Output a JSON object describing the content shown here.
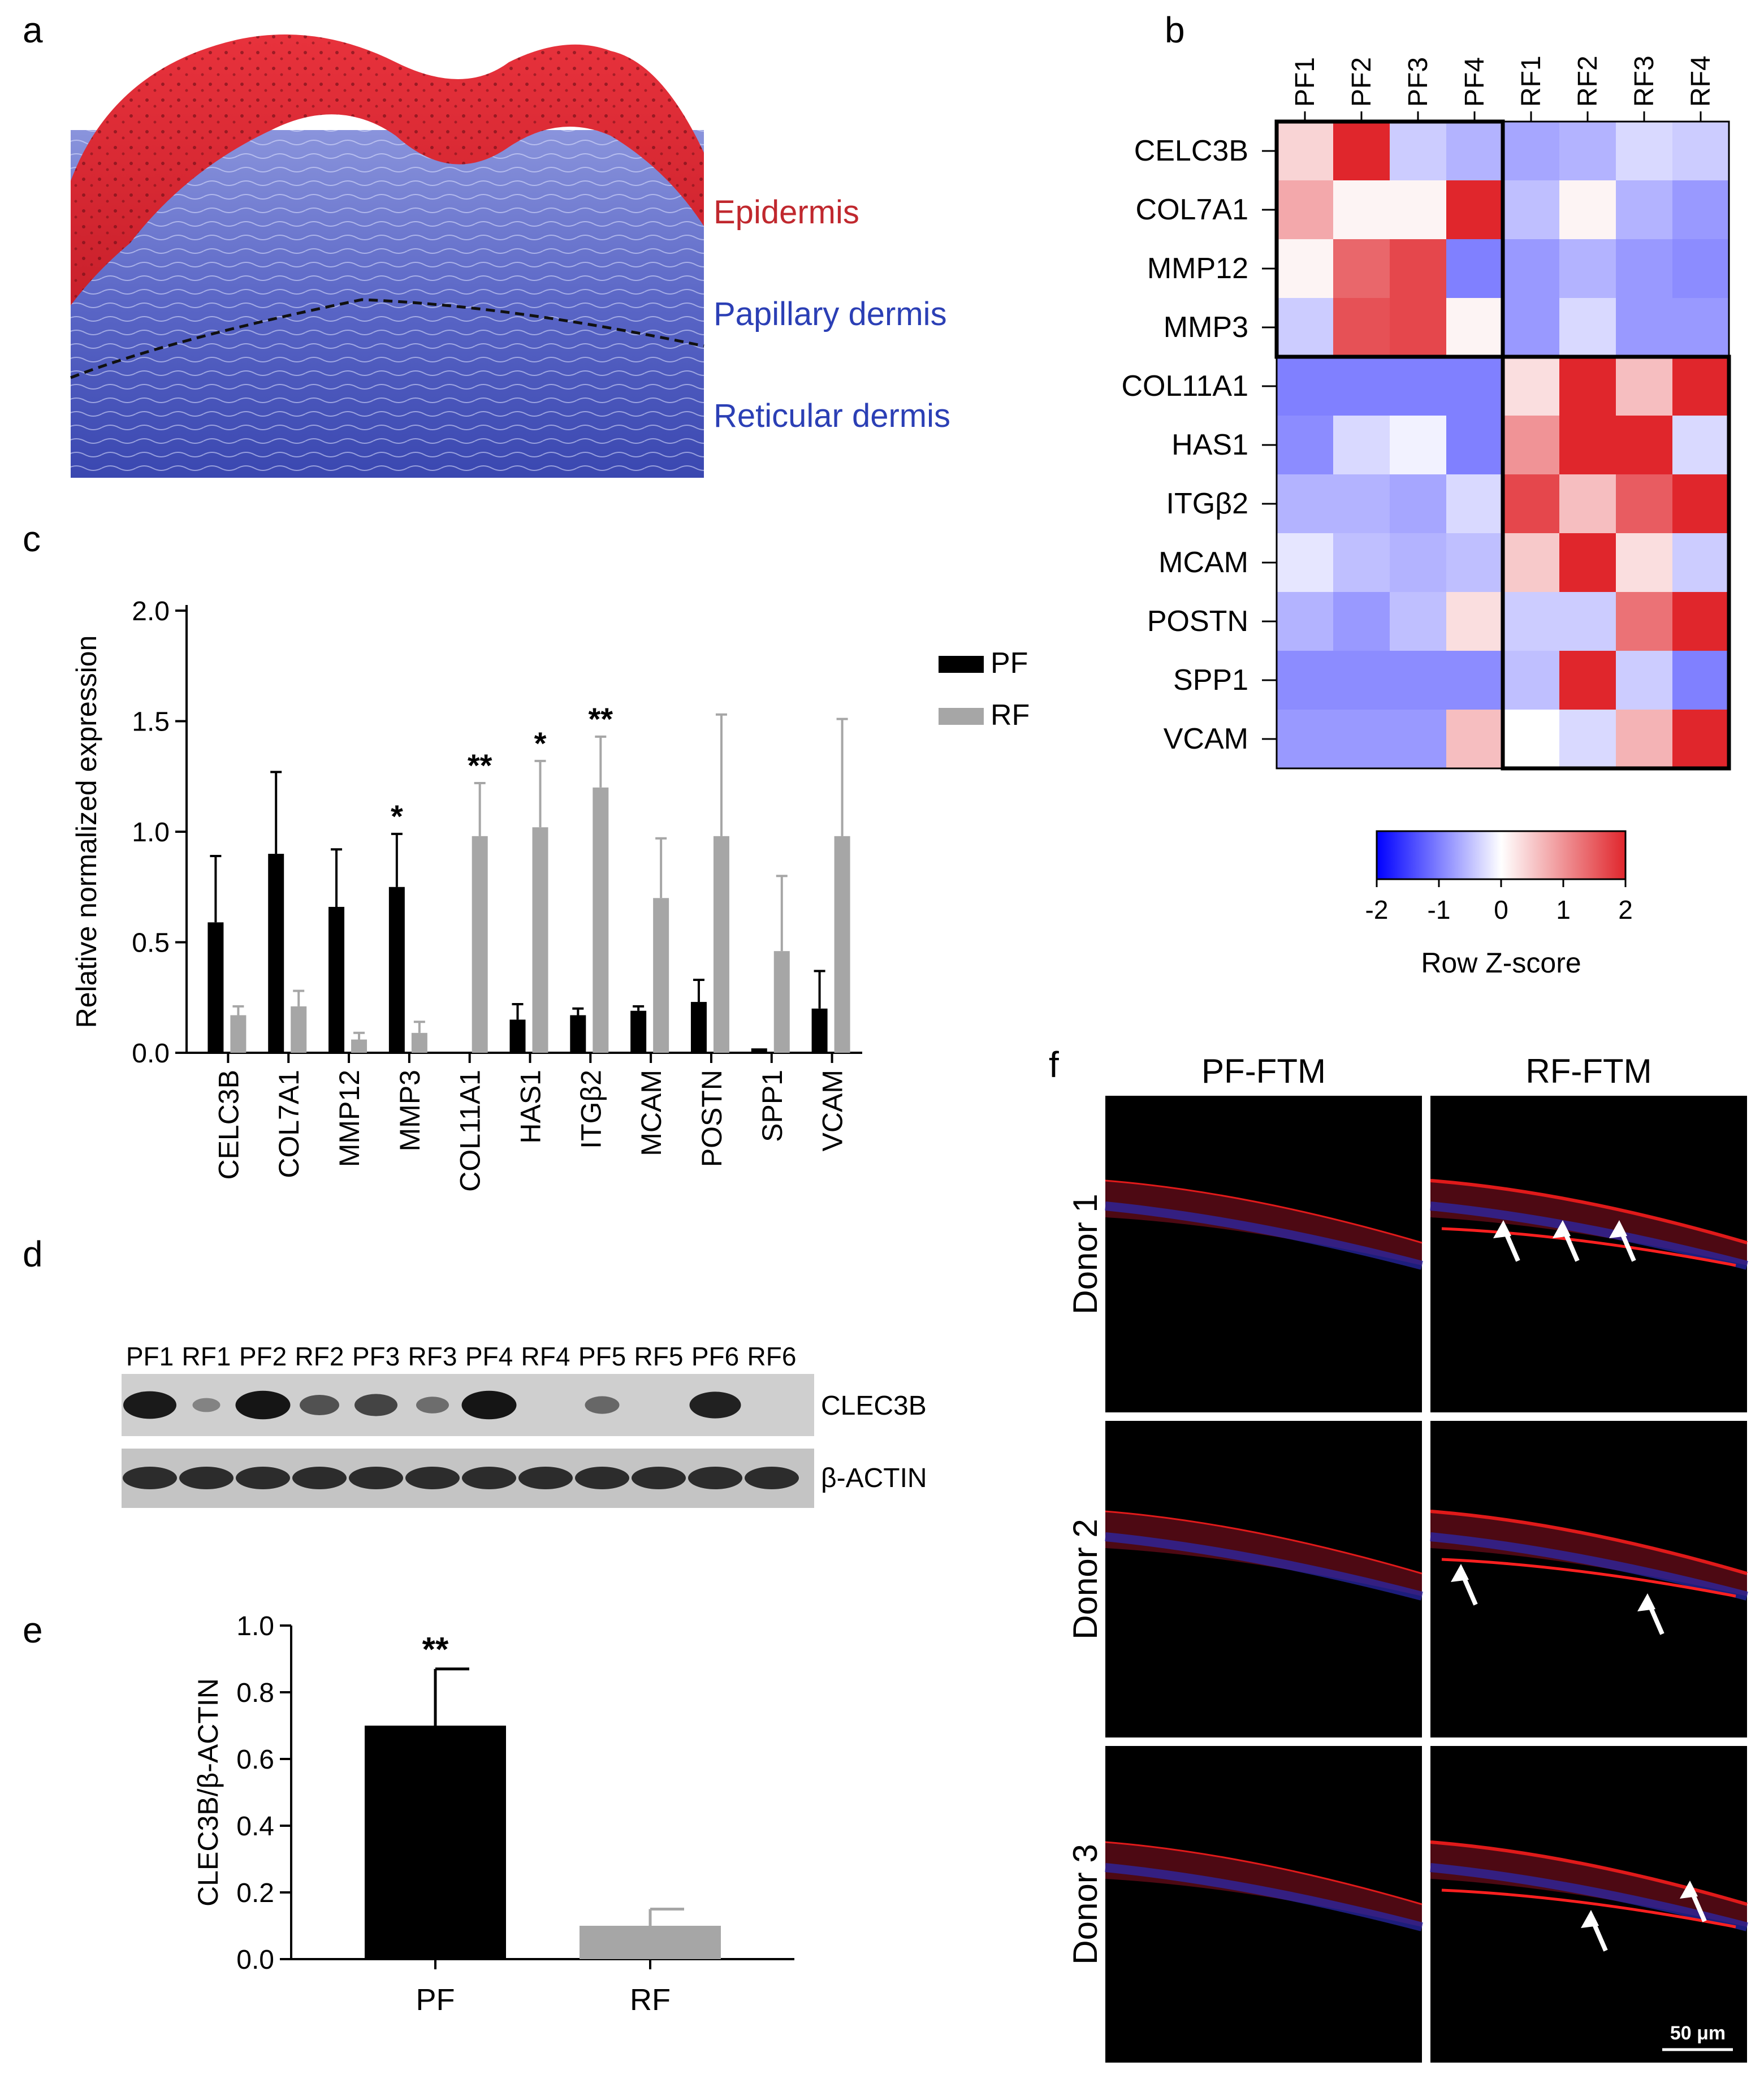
{
  "panel_labels": {
    "a": "a",
    "b": "b",
    "c": "c",
    "d": "d",
    "e": "e",
    "f": "f"
  },
  "histology": {
    "labels": [
      {
        "text": "Epidermis",
        "color": "#c0282e"
      },
      {
        "text": "Papillary dermis",
        "color": "#2b3fb5"
      },
      {
        "text": "Reticular dermis",
        "color": "#2b3fb5"
      }
    ]
  },
  "chart_data": [
    {
      "id": "heatmap",
      "type": "heatmap",
      "columns": [
        "PF1",
        "PF2",
        "PF3",
        "PF4",
        "RF1",
        "RF2",
        "RF3",
        "RF4"
      ],
      "rows": [
        "CELC3B",
        "COL7A1",
        "MMP12",
        "MMP3",
        "COL11A1",
        "HAS1",
        "ITGβ2",
        "MCAM",
        "POSTN",
        "SPP1",
        "VCAM"
      ],
      "values": [
        [
          0.4,
          2.0,
          -0.4,
          -0.6,
          -0.7,
          -0.6,
          -0.3,
          -0.4
        ],
        [
          0.8,
          0.1,
          0.1,
          2.0,
          -0.5,
          0.1,
          -0.6,
          -0.8
        ],
        [
          0.1,
          1.4,
          1.7,
          -1.0,
          -0.8,
          -0.6,
          -0.8,
          -0.9
        ],
        [
          -0.4,
          1.6,
          1.7,
          0.1,
          -0.8,
          -0.3,
          -0.8,
          -0.8
        ],
        [
          -1.0,
          -1.0,
          -1.0,
          -1.0,
          0.3,
          2.0,
          0.6,
          2.0
        ],
        [
          -0.9,
          -0.3,
          -0.1,
          -1.0,
          1.0,
          2.0,
          2.0,
          -0.3
        ],
        [
          -0.6,
          -0.6,
          -0.7,
          -0.3,
          1.7,
          0.6,
          1.5,
          2.0
        ],
        [
          -0.2,
          -0.5,
          -0.6,
          -0.5,
          0.5,
          2.0,
          0.3,
          -0.4
        ],
        [
          -0.6,
          -0.8,
          -0.5,
          0.3,
          -0.4,
          -0.4,
          1.3,
          2.0
        ],
        [
          -0.9,
          -0.9,
          -0.9,
          -0.9,
          -0.5,
          2.0,
          -0.4,
          -1.0
        ],
        [
          -0.8,
          -0.8,
          -0.8,
          0.6,
          0.0,
          -0.3,
          0.7,
          2.0
        ]
      ],
      "colorbar": {
        "ticks": [
          "-2",
          "-1",
          "0",
          "1",
          "2"
        ],
        "label": "Row Z-score",
        "min": -2,
        "max": 2,
        "low": "#0000ff",
        "mid": "#ffffff",
        "high": "#e0262c"
      }
    },
    {
      "id": "qpcr",
      "type": "bar",
      "ylabel": "Relative normalized expression",
      "ylim": [
        0,
        2.0
      ],
      "yticks": [
        "0.0",
        "0.5",
        "1.0",
        "1.5",
        "2.0"
      ],
      "categories": [
        "CELC3B",
        "COL7A1",
        "MMP12",
        "MMP3",
        "COL11A1",
        "HAS1",
        "ITGβ2",
        "MCAM",
        "POSTN",
        "SPP1",
        "VCAM"
      ],
      "series": [
        {
          "name": "PF",
          "color": "#000000",
          "values": [
            0.59,
            0.9,
            0.66,
            0.75,
            0.0,
            0.15,
            0.17,
            0.19,
            0.23,
            0.02,
            0.2
          ],
          "errors": [
            0.3,
            0.37,
            0.26,
            0.24,
            0.0,
            0.07,
            0.03,
            0.02,
            0.1,
            0.0,
            0.17
          ]
        },
        {
          "name": "RF",
          "color": "#a6a6a6",
          "values": [
            0.17,
            0.21,
            0.06,
            0.09,
            0.98,
            1.02,
            1.2,
            0.7,
            0.98,
            0.46,
            0.98
          ],
          "errors": [
            0.04,
            0.07,
            0.03,
            0.05,
            0.24,
            0.3,
            0.23,
            0.27,
            0.55,
            0.34,
            0.53
          ]
        }
      ],
      "annotations": [
        {
          "category": "MMP3",
          "series": "PF",
          "text": "*"
        },
        {
          "category": "COL11A1",
          "series": "RF",
          "text": "**"
        },
        {
          "category": "HAS1",
          "series": "RF",
          "text": "*"
        },
        {
          "category": "ITGβ2",
          "series": "RF",
          "text": "**"
        }
      ],
      "legend": {
        "position": "top-right",
        "entries": [
          "PF",
          "RF"
        ]
      }
    },
    {
      "id": "western_quant",
      "type": "bar",
      "ylabel": "CLEC3B/β-ACTIN",
      "ylim": [
        0,
        1.0
      ],
      "yticks": [
        "0.0",
        "0.2",
        "0.4",
        "0.6",
        "0.8",
        "1.0"
      ],
      "categories": [
        "PF",
        "RF"
      ],
      "values": [
        0.7,
        0.1
      ],
      "errors": [
        0.17,
        0.05
      ],
      "colors": [
        "#000000",
        "#a6a6a6"
      ],
      "annotations": [
        {
          "category": "PF",
          "text": "**"
        }
      ]
    }
  ],
  "western": {
    "lanes": [
      "PF1",
      "RF1",
      "PF2",
      "RF2",
      "PF3",
      "RF3",
      "PF4",
      "RF4",
      "PF5",
      "RF5",
      "PF6",
      "RF6"
    ],
    "clec3b_label": "CLEC3B",
    "actin_label": "β-ACTIN",
    "clec3b_intensity": [
      0.9,
      0.15,
      0.95,
      0.5,
      0.6,
      0.3,
      0.95,
      0.0,
      0.35,
      0.0,
      0.85,
      0.0
    ]
  },
  "micrographs": {
    "columns": [
      "PF-FTM",
      "RF-FTM"
    ],
    "rows": [
      "Donor 1",
      "Donor 2",
      "Donor 3"
    ],
    "scale_bar": "50 μm"
  }
}
